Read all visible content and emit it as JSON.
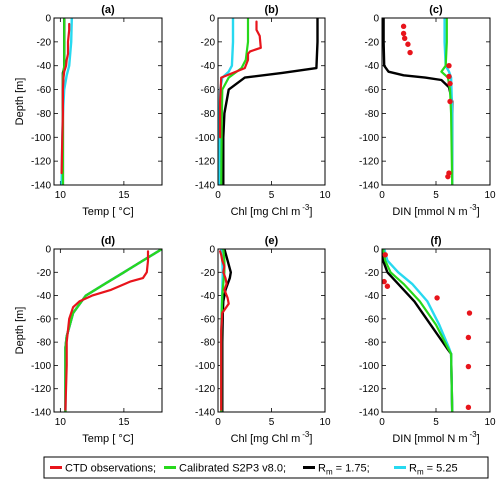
{
  "figure": {
    "ylabel": "Depth [m]",
    "legend": {
      "entries": [
        {
          "label": "CTD observations;",
          "color": "#e8141b",
          "style": "line"
        },
        {
          "label": "Calibrated S2P3 v8.0;",
          "color": "#27d81b",
          "style": "line"
        },
        {
          "label": "R",
          "subscript": "m",
          "suffix": " = 1.75;",
          "color": "#000000",
          "style": "line"
        },
        {
          "label": "R",
          "subscript": "m",
          "suffix": " = 5.25",
          "color": "#27d9f0",
          "style": "line"
        }
      ]
    }
  },
  "chart_data": [
    {
      "panel": "(a)",
      "type": "line",
      "xlabel": "Temp [ °C]",
      "ylabel": "Depth [m]",
      "xlim": [
        9.5,
        18
      ],
      "ylim": [
        -140,
        0
      ],
      "xticks": [
        10,
        15
      ],
      "yticks": [
        0,
        -20,
        -40,
        -60,
        -80,
        -100,
        -120,
        -140
      ],
      "series": [
        {
          "role": "obs",
          "x": [
            10.7,
            10.7,
            10.6,
            10.6,
            10.5,
            10.45,
            10.3,
            10.25,
            10.2,
            10.2,
            10.15,
            10.1
          ],
          "y": [
            -5,
            -10,
            -20,
            -30,
            -35,
            -40,
            -45,
            -50,
            -60,
            -80,
            -100,
            -130
          ]
        },
        {
          "role": "s2p3",
          "x": [
            10.3,
            10.3,
            10.3,
            10.25,
            10.2,
            10.2,
            10.2
          ],
          "y": [
            -1,
            -20,
            -40,
            -45,
            -50,
            -80,
            -140
          ]
        },
        {
          "role": "rm175",
          "x": [
            10.3,
            10.3,
            10.3,
            10.2,
            10.2,
            10.2
          ],
          "y": [
            -1,
            -20,
            -42,
            -46,
            -60,
            -140
          ]
        },
        {
          "role": "rm525",
          "x": [
            10.9,
            10.85,
            10.7,
            10.5,
            10.3,
            10.2,
            10.15,
            10.1
          ],
          "y": [
            0,
            -20,
            -40,
            -48,
            -60,
            -80,
            -100,
            -140
          ]
        }
      ]
    },
    {
      "panel": "(b)",
      "type": "line",
      "xlabel": "Chl [mg Chl m",
      "xlabel_sup": "-3",
      "xlabel_end": "]",
      "xlim": [
        0,
        10
      ],
      "ylim": [
        -140,
        0
      ],
      "xticks": [
        0,
        5,
        10
      ],
      "yticks": [
        0,
        -20,
        -40,
        -60,
        -80,
        -100,
        -120,
        -140
      ],
      "series": [
        {
          "role": "obs",
          "x": [
            3.6,
            3.6,
            3.9,
            4.0,
            3.0,
            2.8,
            2.8,
            2.5,
            0.3,
            0.2,
            0.2
          ],
          "y": [
            -3,
            -10,
            -15,
            -25,
            -28,
            -30,
            -35,
            -42,
            -50,
            -70,
            -100
          ]
        },
        {
          "role": "s2p3",
          "x": [
            2.8,
            2.8,
            2.6,
            2.2,
            1.0,
            0.4,
            0.35,
            0.3
          ],
          "y": [
            0,
            -20,
            -35,
            -42,
            -50,
            -60,
            -90,
            -140
          ]
        },
        {
          "role": "rm175",
          "x": [
            9.3,
            9.3,
            9.2,
            6.0,
            2.5,
            1.0,
            0.6,
            0.5,
            0.5
          ],
          "y": [
            0,
            -20,
            -42,
            -46,
            -50,
            -60,
            -80,
            -100,
            -140
          ]
        },
        {
          "role": "rm525",
          "x": [
            1.4,
            1.4,
            1.3,
            1.0,
            0.4,
            0.2,
            0.15,
            0.1
          ],
          "y": [
            0,
            -20,
            -40,
            -45,
            -50,
            -60,
            -80,
            -140
          ]
        }
      ]
    },
    {
      "panel": "(c)",
      "type": "line",
      "xlabel": "DIN [mmol N m",
      "xlabel_sup": "-3",
      "xlabel_end": "]",
      "xlim": [
        0,
        10
      ],
      "ylim": [
        -140,
        0
      ],
      "xticks": [
        0,
        5,
        10
      ],
      "yticks": [
        0,
        -20,
        -40,
        -60,
        -80,
        -100,
        -120,
        -140
      ],
      "series": [
        {
          "role": "obs",
          "mode": "points",
          "x": [
            2.0,
            2.0,
            2.1,
            2.4,
            2.6,
            6.2,
            6.2,
            6.3,
            6.3,
            6.2,
            6.1
          ],
          "y": [
            -7,
            -13,
            -17,
            -22,
            -29,
            -40,
            -49,
            -55,
            -70,
            -130,
            -133
          ]
        },
        {
          "role": "s2p3",
          "x": [
            6.0,
            6.0,
            5.9,
            5.5,
            6.1,
            6.3,
            6.4,
            6.5
          ],
          "y": [
            0,
            -20,
            -40,
            -45,
            -50,
            -60,
            -80,
            -140
          ]
        },
        {
          "role": "rm175",
          "x": [
            0.15,
            0.15,
            0.2,
            0.6,
            2.0,
            4.0,
            5.5,
            6.2,
            6.5,
            6.5
          ],
          "y": [
            0,
            -20,
            -40,
            -45,
            -48,
            -50,
            -52,
            -58,
            -70,
            -140
          ]
        },
        {
          "role": "rm525",
          "x": [
            5.8,
            5.8,
            5.9,
            6.2,
            6.4,
            6.5,
            6.5
          ],
          "y": [
            0,
            -20,
            -40,
            -45,
            -50,
            -80,
            -140
          ]
        }
      ]
    },
    {
      "panel": "(d)",
      "type": "line",
      "xlabel": "Temp [ °C]",
      "ylabel": "Depth [m]",
      "xlim": [
        9.5,
        18
      ],
      "ylim": [
        -140,
        0
      ],
      "xticks": [
        10,
        15
      ],
      "yticks": [
        0,
        -20,
        -40,
        -60,
        -80,
        -100,
        -120,
        -140
      ],
      "series": [
        {
          "role": "obs",
          "x": [
            16.9,
            16.9,
            16.8,
            16.5,
            15.5,
            14.0,
            12.5,
            11.5,
            11.0,
            10.7,
            10.5,
            10.5,
            10.4
          ],
          "y": [
            -2,
            -10,
            -20,
            -25,
            -28,
            -35,
            -40,
            -45,
            -50,
            -60,
            -80,
            -100,
            -138
          ]
        },
        {
          "role": "s2p3",
          "x": [
            18.0,
            16.5,
            15.0,
            13.5,
            12.0,
            11.0,
            10.5,
            10.4,
            10.4,
            10.4
          ],
          "y": [
            0,
            -10,
            -20,
            -30,
            -40,
            -55,
            -75,
            -85,
            -90,
            -140
          ]
        },
        {
          "role": "rm175",
          "x": [
            18.0,
            16.5,
            15.0,
            13.5,
            12.0,
            11.0,
            10.5,
            10.4,
            10.4,
            10.4
          ],
          "y": [
            0,
            -10,
            -20,
            -30,
            -40,
            -55,
            -75,
            -85,
            -90,
            -140
          ]
        },
        {
          "role": "rm525",
          "x": [
            18.0,
            16.5,
            15.0,
            13.5,
            12.0,
            11.0,
            10.5,
            10.4,
            10.4,
            10.4
          ],
          "y": [
            0,
            -10,
            -20,
            -30,
            -40,
            -55,
            -75,
            -85,
            -90,
            -140
          ]
        }
      ]
    },
    {
      "panel": "(e)",
      "type": "line",
      "xlabel": "Chl [mg Chl m",
      "xlabel_sup": "-3",
      "xlabel_end": "]",
      "xlim": [
        0,
        10
      ],
      "ylim": [
        -140,
        0
      ],
      "xticks": [
        0,
        5,
        10
      ],
      "yticks": [
        0,
        -20,
        -40,
        -60,
        -80,
        -100,
        -120,
        -140
      ],
      "series": [
        {
          "role": "obs",
          "x": [
            0.2,
            0.3,
            0.4,
            0.6,
            0.5,
            0.7,
            0.8,
            0.6,
            0.9,
            1.0,
            0.4,
            0.3,
            0.3,
            0.3
          ],
          "y": [
            -2,
            -5,
            -10,
            -15,
            -20,
            -25,
            -30,
            -35,
            -42,
            -47,
            -55,
            -70,
            -100,
            -138
          ]
        },
        {
          "role": "s2p3",
          "x": [
            0.5,
            0.6,
            0.6,
            0.5,
            0.4,
            0.35,
            0.3,
            0.3
          ],
          "y": [
            0,
            -10,
            -20,
            -30,
            -40,
            -55,
            -80,
            -140
          ]
        },
        {
          "role": "rm175",
          "x": [
            0.6,
            0.9,
            1.2,
            1.1,
            0.7,
            0.5,
            0.45,
            0.4,
            0.4
          ],
          "y": [
            0,
            -10,
            -20,
            -25,
            -35,
            -45,
            -55,
            -80,
            -140
          ]
        },
        {
          "role": "rm525",
          "x": [
            0.3,
            0.4,
            0.45,
            0.4,
            0.35,
            0.3,
            0.3
          ],
          "y": [
            0,
            -10,
            -20,
            -35,
            -50,
            -80,
            -140
          ]
        }
      ]
    },
    {
      "panel": "(f)",
      "type": "line",
      "xlabel": "DIN [mmol N m",
      "xlabel_sup": "-3",
      "xlabel_end": "]",
      "xlim": [
        0,
        10
      ],
      "ylim": [
        -140,
        0
      ],
      "xticks": [
        0,
        5,
        10
      ],
      "yticks": [
        0,
        -20,
        -40,
        -60,
        -80,
        -100,
        -120,
        -140
      ],
      "series": [
        {
          "role": "obs",
          "mode": "points",
          "x": [
            0.3,
            0.2,
            0.5,
            5.1,
            8.1,
            8.0,
            8.0,
            8.0
          ],
          "y": [
            -5,
            -28,
            -32,
            -42,
            -55,
            -76,
            -101,
            -136
          ]
        },
        {
          "role": "s2p3",
          "x": [
            0.1,
            0.3,
            0.8,
            2.0,
            3.5,
            5.0,
            6.1,
            6.4,
            6.5
          ],
          "y": [
            0,
            -10,
            -20,
            -30,
            -45,
            -65,
            -85,
            -90,
            -140
          ]
        },
        {
          "role": "rm175",
          "x": [
            0.05,
            0.1,
            0.5,
            1.5,
            3.0,
            4.5,
            6.0,
            6.4,
            6.5
          ],
          "y": [
            0,
            -10,
            -20,
            -30,
            -45,
            -65,
            -85,
            -90,
            -140
          ]
        },
        {
          "role": "rm525",
          "x": [
            0.2,
            0.5,
            1.5,
            2.8,
            4.2,
            5.3,
            6.2,
            6.4,
            6.5
          ],
          "y": [
            0,
            -10,
            -20,
            -30,
            -45,
            -65,
            -85,
            -90,
            -140
          ]
        }
      ]
    }
  ],
  "role_colors": {
    "obs": "#e8141b",
    "s2p3": "#27d81b",
    "rm175": "#000000",
    "rm525": "#27d9f0"
  }
}
